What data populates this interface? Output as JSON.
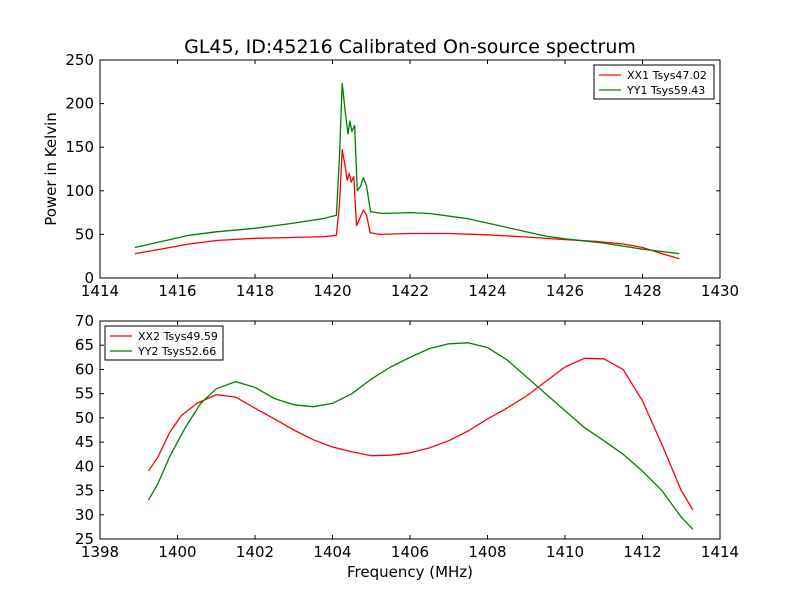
{
  "chart_data": [
    {
      "type": "line",
      "title": "GL45, ID:45216 Calibrated On-source spectrum",
      "xlabel": "",
      "ylabel": "Power in Kelvin",
      "xlim": [
        1414,
        1430
      ],
      "ylim": [
        0,
        250
      ],
      "xticks": [
        1414,
        1416,
        1418,
        1420,
        1422,
        1424,
        1426,
        1428,
        1430
      ],
      "yticks": [
        0,
        50,
        100,
        150,
        200,
        250
      ],
      "grid": false,
      "legend_position": "top-right",
      "series": [
        {
          "name": "XX1 Tsys47.02",
          "color": "#ff0000",
          "points": [
            [
              1414.9,
              28
            ],
            [
              1415.3,
              31
            ],
            [
              1415.8,
              35
            ],
            [
              1416.3,
              39
            ],
            [
              1417.0,
              43
            ],
            [
              1418.0,
              45.5
            ],
            [
              1419.0,
              46.5
            ],
            [
              1419.8,
              47.5
            ],
            [
              1420.1,
              49
            ],
            [
              1420.18,
              85
            ],
            [
              1420.25,
              147
            ],
            [
              1420.32,
              130
            ],
            [
              1420.38,
              112
            ],
            [
              1420.43,
              120
            ],
            [
              1420.48,
              110
            ],
            [
              1420.55,
              116
            ],
            [
              1420.62,
              60
            ],
            [
              1420.7,
              68
            ],
            [
              1420.8,
              78
            ],
            [
              1420.88,
              72
            ],
            [
              1420.97,
              52
            ],
            [
              1421.2,
              50
            ],
            [
              1422.0,
              51
            ],
            [
              1423.0,
              51
            ],
            [
              1424.0,
              49.5
            ],
            [
              1425.0,
              47
            ],
            [
              1426.0,
              44
            ],
            [
              1426.8,
              42
            ],
            [
              1427.5,
              39
            ],
            [
              1428.0,
              35
            ],
            [
              1428.5,
              28
            ],
            [
              1428.95,
              22
            ]
          ]
        },
        {
          "name": "YY1 Tsys59.43",
          "color": "#008000",
          "points": [
            [
              1414.9,
              35
            ],
            [
              1415.3,
              39
            ],
            [
              1415.8,
              44
            ],
            [
              1416.3,
              49
            ],
            [
              1417.0,
              53
            ],
            [
              1418.0,
              57
            ],
            [
              1419.0,
              63
            ],
            [
              1419.8,
              68.5
            ],
            [
              1420.1,
              72
            ],
            [
              1420.18,
              140
            ],
            [
              1420.25,
              223
            ],
            [
              1420.33,
              190
            ],
            [
              1420.4,
              165
            ],
            [
              1420.45,
              180
            ],
            [
              1420.5,
              168
            ],
            [
              1420.57,
              175
            ],
            [
              1420.64,
              100
            ],
            [
              1420.72,
              105
            ],
            [
              1420.8,
              115
            ],
            [
              1420.88,
              105
            ],
            [
              1420.98,
              76
            ],
            [
              1421.3,
              74
            ],
            [
              1422.0,
              75
            ],
            [
              1422.5,
              74
            ],
            [
              1423.5,
              68
            ],
            [
              1424.5,
              58
            ],
            [
              1425.5,
              48
            ],
            [
              1426.0,
              45
            ],
            [
              1427.0,
              40
            ],
            [
              1428.0,
              33
            ],
            [
              1428.95,
              28
            ]
          ]
        }
      ]
    },
    {
      "type": "line",
      "title": "",
      "xlabel": "Frequency (MHz)",
      "ylabel": "",
      "xlim": [
        1398,
        1414
      ],
      "ylim": [
        25,
        70
      ],
      "xticks": [
        1398,
        1400,
        1402,
        1404,
        1406,
        1408,
        1410,
        1412,
        1414
      ],
      "yticks": [
        25,
        30,
        35,
        40,
        45,
        50,
        55,
        60,
        65,
        70
      ],
      "grid": false,
      "legend_position": "top-left",
      "series": [
        {
          "name": "XX2 Tsys49.59",
          "color": "#ff0000",
          "points": [
            [
              1399.25,
              39
            ],
            [
              1399.5,
              42
            ],
            [
              1399.8,
              47
            ],
            [
              1400.1,
              50.5
            ],
            [
              1400.5,
              53
            ],
            [
              1401.0,
              54.8
            ],
            [
              1401.5,
              54.3
            ],
            [
              1402.0,
              52
            ],
            [
              1402.5,
              49.8
            ],
            [
              1403.0,
              47.5
            ],
            [
              1403.5,
              45.5
            ],
            [
              1404.0,
              44
            ],
            [
              1404.5,
              43
            ],
            [
              1405.0,
              42.2
            ],
            [
              1405.5,
              42.3
            ],
            [
              1406.0,
              42.8
            ],
            [
              1406.5,
              43.8
            ],
            [
              1407.0,
              45.3
            ],
            [
              1407.5,
              47.3
            ],
            [
              1408.0,
              49.8
            ],
            [
              1408.5,
              52
            ],
            [
              1409.0,
              54.5
            ],
            [
              1409.5,
              57.5
            ],
            [
              1410.0,
              60.5
            ],
            [
              1410.5,
              62.3
            ],
            [
              1411.0,
              62.2
            ],
            [
              1411.5,
              60
            ],
            [
              1412.0,
              53.5
            ],
            [
              1412.5,
              44.5
            ],
            [
              1413.0,
              35
            ],
            [
              1413.3,
              31
            ]
          ]
        },
        {
          "name": "YY2 Tsys52.66",
          "color": "#008000",
          "points": [
            [
              1399.25,
              33
            ],
            [
              1399.5,
              36.5
            ],
            [
              1399.8,
              42
            ],
            [
              1400.2,
              48
            ],
            [
              1400.6,
              53
            ],
            [
              1401.0,
              56
            ],
            [
              1401.5,
              57.5
            ],
            [
              1402.0,
              56.3
            ],
            [
              1402.5,
              54
            ],
            [
              1403.0,
              52.7
            ],
            [
              1403.5,
              52.3
            ],
            [
              1404.0,
              53
            ],
            [
              1404.5,
              55
            ],
            [
              1405.0,
              58
            ],
            [
              1405.5,
              60.5
            ],
            [
              1406.0,
              62.5
            ],
            [
              1406.5,
              64.3
            ],
            [
              1407.0,
              65.3
            ],
            [
              1407.5,
              65.5
            ],
            [
              1408.0,
              64.5
            ],
            [
              1408.5,
              62
            ],
            [
              1409.0,
              58.5
            ],
            [
              1409.5,
              55
            ],
            [
              1410.0,
              51.5
            ],
            [
              1410.5,
              48
            ],
            [
              1411.0,
              45.3
            ],
            [
              1411.5,
              42.5
            ],
            [
              1412.0,
              39
            ],
            [
              1412.5,
              35
            ],
            [
              1413.0,
              29.5
            ],
            [
              1413.3,
              27
            ]
          ]
        }
      ]
    }
  ]
}
